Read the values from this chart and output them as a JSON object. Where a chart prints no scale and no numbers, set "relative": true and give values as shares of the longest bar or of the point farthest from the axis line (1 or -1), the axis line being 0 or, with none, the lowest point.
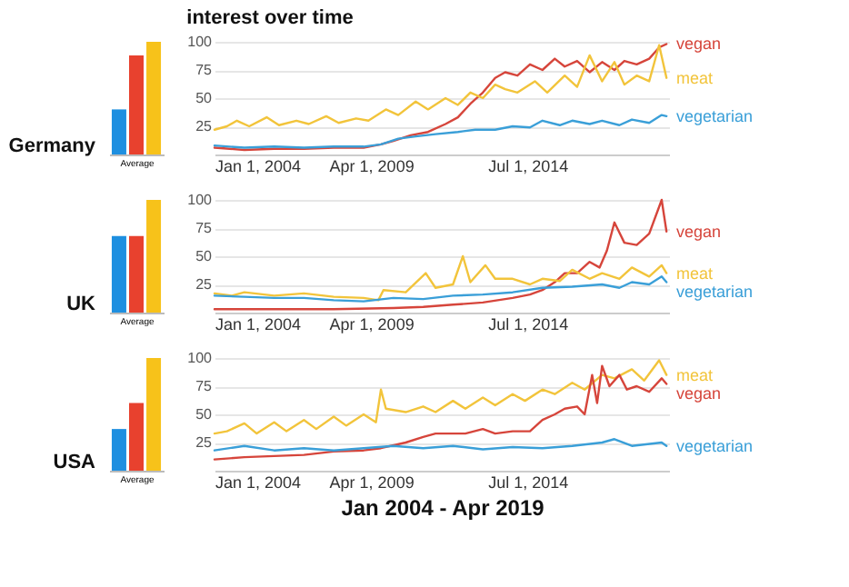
{
  "chart_data": [
    {
      "type": "bar",
      "relative": true,
      "categories": [
        null,
        null,
        null
      ],
      "values": [
        0.4,
        0.88,
        1
      ],
      "colors": [
        "#1e8fe0",
        "#e8412e",
        "#f7c21a"
      ],
      "xlabel": "Average",
      "ylabel": "Germany",
      "tick_labels": false
    },
    {
      "type": "line",
      "title": "interest over time",
      "xlim": [
        "2004-01-01",
        "2019-04-01"
      ],
      "xticks": [
        {
          "value": "2004-01-01",
          "label": "Jan 1, 2004"
        },
        {
          "value": "2009-04-01",
          "label": "Apr 1, 2009"
        },
        {
          "value": "2014-07-01",
          "label": "Jul 1, 2014"
        }
      ],
      "ylim": [
        0,
        100
      ],
      "yticks": [
        25,
        50,
        75,
        100
      ],
      "grid": "y",
      "series": [
        {
          "name": "vegan",
          "color": "#d6453b",
          "x": [
            "2004-01",
            "2005-01",
            "2006-01",
            "2007-01",
            "2008-01",
            "2009-01",
            "2009-08",
            "2010-01",
            "2010-08",
            "2011-03",
            "2011-10",
            "2012-03",
            "2012-08",
            "2013-01",
            "2013-06",
            "2013-10",
            "2014-03",
            "2014-08",
            "2015-01",
            "2015-06",
            "2015-10",
            "2016-03",
            "2016-08",
            "2017-01",
            "2017-06",
            "2017-10",
            "2018-03",
            "2018-08",
            "2018-12",
            "2019-03"
          ],
          "values": [
            6,
            4,
            5,
            5,
            6,
            6,
            9,
            12,
            17,
            20,
            27,
            33,
            45,
            55,
            68,
            73,
            70,
            80,
            75,
            85,
            78,
            83,
            73,
            82,
            75,
            83,
            80,
            85,
            95,
            98
          ]
        },
        {
          "name": "meat",
          "color": "#f2c43b",
          "x": [
            "2004-01",
            "2004-06",
            "2004-10",
            "2005-03",
            "2005-10",
            "2006-03",
            "2006-10",
            "2007-03",
            "2007-10",
            "2008-03",
            "2008-10",
            "2009-03",
            "2009-10",
            "2010-03",
            "2010-10",
            "2011-03",
            "2011-10",
            "2012-03",
            "2012-08",
            "2013-01",
            "2013-06",
            "2013-10",
            "2014-03",
            "2014-10",
            "2015-03",
            "2015-10",
            "2016-03",
            "2016-08",
            "2017-01",
            "2017-06",
            "2017-10",
            "2018-03",
            "2018-08",
            "2018-12",
            "2019-03"
          ],
          "values": [
            22,
            25,
            30,
            25,
            33,
            26,
            30,
            27,
            34,
            28,
            32,
            30,
            40,
            35,
            47,
            40,
            50,
            44,
            55,
            50,
            62,
            58,
            55,
            65,
            55,
            70,
            60,
            88,
            65,
            82,
            62,
            70,
            65,
            97,
            68
          ]
        },
        {
          "name": "vegetarian",
          "color": "#3a9fd8",
          "x": [
            "2004-01",
            "2005-01",
            "2006-01",
            "2007-01",
            "2008-01",
            "2009-01",
            "2009-08",
            "2010-03",
            "2010-10",
            "2011-06",
            "2012-03",
            "2012-10",
            "2013-06",
            "2014-01",
            "2014-08",
            "2015-01",
            "2015-08",
            "2016-01",
            "2016-08",
            "2017-01",
            "2017-08",
            "2018-01",
            "2018-08",
            "2019-01",
            "2019-03"
          ],
          "values": [
            8,
            6,
            7,
            6,
            7,
            7,
            9,
            14,
            16,
            18,
            20,
            22,
            22,
            25,
            24,
            30,
            26,
            30,
            27,
            30,
            26,
            31,
            28,
            35,
            34
          ]
        }
      ]
    },
    {
      "type": "bar",
      "relative": true,
      "categories": [
        null,
        null,
        null
      ],
      "values": [
        0.68,
        0.68,
        1
      ],
      "colors": [
        "#1e8fe0",
        "#e8412e",
        "#f7c21a"
      ],
      "xlabel": "Average",
      "ylabel": "UK",
      "tick_labels": false
    },
    {
      "type": "line",
      "xlim": [
        "2004-01-01",
        "2019-04-01"
      ],
      "xticks": [
        {
          "value": "2004-01-01",
          "label": "Jan 1, 2004"
        },
        {
          "value": "2009-04-01",
          "label": "Apr 1, 2009"
        },
        {
          "value": "2014-07-01",
          "label": "Jul 1, 2014"
        }
      ],
      "ylim": [
        0,
        100
      ],
      "yticks": [
        25,
        50,
        75,
        100
      ],
      "grid": "y",
      "series": [
        {
          "name": "vegan",
          "color": "#d6453b",
          "x": [
            "2004-01",
            "2006-01",
            "2008-01",
            "2010-01",
            "2011-01",
            "2012-01",
            "2013-01",
            "2014-01",
            "2014-08",
            "2015-01",
            "2015-06",
            "2015-10",
            "2016-03",
            "2016-08",
            "2016-12",
            "2017-03",
            "2017-06",
            "2017-10",
            "2018-03",
            "2018-08",
            "2019-01",
            "2019-03"
          ],
          "values": [
            3,
            3,
            3,
            4,
            5,
            7,
            9,
            13,
            16,
            20,
            27,
            35,
            35,
            45,
            40,
            55,
            80,
            62,
            60,
            70,
            100,
            72
          ]
        },
        {
          "name": "meat",
          "color": "#f2c43b",
          "x": [
            "2004-01",
            "2004-08",
            "2005-01",
            "2006-01",
            "2007-01",
            "2008-01",
            "2009-01",
            "2009-07",
            "2009-09",
            "2010-06",
            "2011-02",
            "2011-06",
            "2012-01",
            "2012-05",
            "2012-08",
            "2013-02",
            "2013-06",
            "2014-01",
            "2014-08",
            "2015-01",
            "2015-08",
            "2016-01",
            "2016-08",
            "2017-01",
            "2017-08",
            "2018-01",
            "2018-08",
            "2019-01",
            "2019-03"
          ],
          "values": [
            17,
            15,
            18,
            15,
            17,
            14,
            13,
            11,
            20,
            18,
            35,
            22,
            25,
            50,
            27,
            42,
            30,
            30,
            25,
            30,
            28,
            38,
            30,
            35,
            30,
            40,
            32,
            42,
            35
          ]
        },
        {
          "name": "vegetarian",
          "color": "#3a9fd8",
          "x": [
            "2004-01",
            "2005-01",
            "2006-01",
            "2007-01",
            "2008-01",
            "2009-01",
            "2010-01",
            "2011-01",
            "2012-01",
            "2013-01",
            "2014-01",
            "2015-01",
            "2016-01",
            "2017-01",
            "2017-08",
            "2018-01",
            "2018-08",
            "2019-01",
            "2019-03"
          ],
          "values": [
            15,
            14,
            13,
            13,
            11,
            10,
            13,
            12,
            15,
            16,
            18,
            22,
            23,
            25,
            22,
            27,
            25,
            32,
            27
          ]
        }
      ]
    },
    {
      "type": "bar",
      "relative": true,
      "categories": [
        null,
        null,
        null
      ],
      "values": [
        0.37,
        0.6,
        1
      ],
      "colors": [
        "#1e8fe0",
        "#e8412e",
        "#f7c21a"
      ],
      "xlabel": "Average",
      "ylabel": "USA",
      "tick_labels": false
    },
    {
      "type": "line",
      "xlabel": "Jan 2004 - Apr 2019",
      "xlim": [
        "2004-01-01",
        "2019-04-01"
      ],
      "xticks": [
        {
          "value": "2004-01-01",
          "label": "Jan 1, 2004"
        },
        {
          "value": "2009-04-01",
          "label": "Apr 1, 2009"
        },
        {
          "value": "2014-07-01",
          "label": "Jul 1, 2014"
        }
      ],
      "ylim": [
        0,
        100
      ],
      "yticks": [
        25,
        50,
        75,
        100
      ],
      "grid": "y",
      "series": [
        {
          "name": "meat",
          "color": "#f2c43b",
          "x": [
            "2004-01",
            "2004-06",
            "2005-01",
            "2005-06",
            "2006-01",
            "2006-06",
            "2007-01",
            "2007-06",
            "2008-01",
            "2008-06",
            "2009-01",
            "2009-06",
            "2009-08",
            "2009-10",
            "2010-06",
            "2011-01",
            "2011-06",
            "2012-01",
            "2012-06",
            "2013-01",
            "2013-06",
            "2014-01",
            "2014-06",
            "2015-01",
            "2015-06",
            "2016-01",
            "2016-06",
            "2017-01",
            "2017-06",
            "2018-01",
            "2018-06",
            "2018-12",
            "2019-03"
          ],
          "values": [
            33,
            35,
            42,
            33,
            43,
            35,
            45,
            37,
            48,
            40,
            50,
            43,
            72,
            55,
            52,
            57,
            52,
            62,
            55,
            65,
            58,
            68,
            62,
            72,
            68,
            78,
            72,
            85,
            82,
            90,
            80,
            98,
            85
          ]
        },
        {
          "name": "vegan",
          "color": "#d6453b",
          "x": [
            "2004-01",
            "2005-01",
            "2006-01",
            "2007-01",
            "2008-01",
            "2009-01",
            "2009-08",
            "2010-06",
            "2011-01",
            "2011-06",
            "2012-06",
            "2013-01",
            "2013-06",
            "2014-01",
            "2014-08",
            "2015-01",
            "2015-06",
            "2015-10",
            "2016-03",
            "2016-06",
            "2016-09",
            "2016-11",
            "2017-01",
            "2017-04",
            "2017-08",
            "2017-11",
            "2018-03",
            "2018-08",
            "2019-01",
            "2019-03"
          ],
          "values": [
            10,
            12,
            13,
            14,
            17,
            18,
            20,
            25,
            30,
            33,
            33,
            37,
            33,
            35,
            35,
            45,
            50,
            55,
            57,
            50,
            85,
            60,
            93,
            75,
            85,
            72,
            75,
            70,
            82,
            77
          ]
        },
        {
          "name": "vegetarian",
          "color": "#3a9fd8",
          "x": [
            "2004-01",
            "2005-01",
            "2006-01",
            "2007-01",
            "2008-01",
            "2009-01",
            "2010-01",
            "2011-01",
            "2012-01",
            "2013-01",
            "2014-01",
            "2015-01",
            "2016-01",
            "2017-01",
            "2017-06",
            "2018-01",
            "2019-01",
            "2019-03"
          ],
          "values": [
            18,
            22,
            18,
            20,
            18,
            20,
            22,
            20,
            22,
            19,
            21,
            20,
            22,
            25,
            28,
            22,
            25,
            22
          ]
        }
      ]
    }
  ]
}
